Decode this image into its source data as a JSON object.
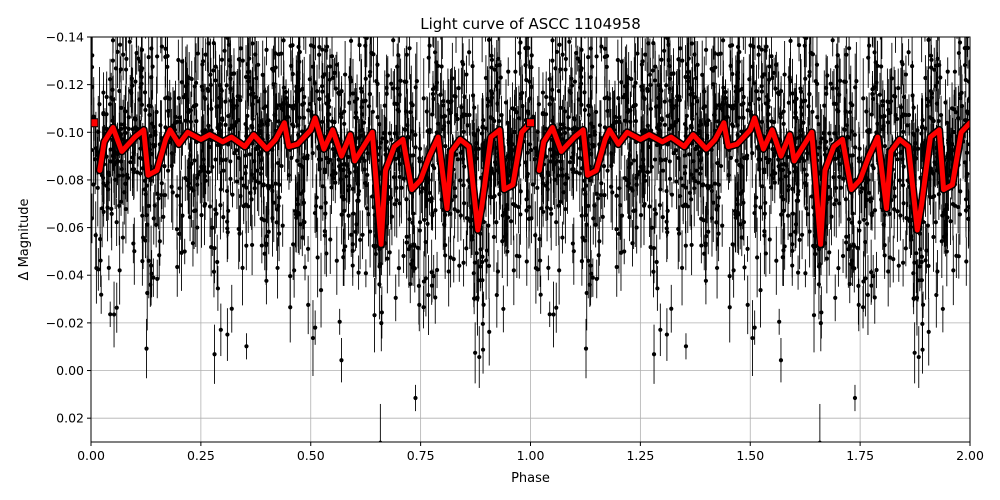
{
  "chart_data": {
    "type": "scatter",
    "title": "Light curve of ASCC 1104958",
    "xlabel": "Phase",
    "ylabel": "Δ Magnitude",
    "xlim": [
      0.0,
      2.0
    ],
    "ylim": [
      0.03,
      -0.14
    ],
    "y_inverted": true,
    "grid": true,
    "x_ticks": [
      0.0,
      0.25,
      0.5,
      0.75,
      1.0,
      1.25,
      1.5,
      1.75,
      2.0
    ],
    "x_tick_labels": [
      "0.00",
      "0.25",
      "0.50",
      "0.75",
      "1.00",
      "1.25",
      "1.50",
      "1.75",
      "2.00"
    ],
    "y_ticks": [
      -0.14,
      -0.12,
      -0.1,
      -0.08,
      -0.06,
      -0.04,
      -0.02,
      0.0,
      0.02
    ],
    "y_tick_labels": [
      "−0.14",
      "−0.12",
      "−0.10",
      "−0.08",
      "−0.06",
      "−0.04",
      "−0.02",
      "0.00",
      "0.02"
    ],
    "colors": {
      "points": "#000000",
      "model": "#ff0000",
      "grid": "#b0b0b0"
    },
    "series": [
      {
        "kind": "binned-model",
        "x": [
          0.0,
          0.02,
          0.03,
          0.05,
          0.07,
          0.08,
          0.1,
          0.12,
          0.13,
          0.15,
          0.17,
          0.18,
          0.2,
          0.22,
          0.25,
          0.27,
          0.3,
          0.32,
          0.35,
          0.37,
          0.4,
          0.42,
          0.44,
          0.45,
          0.47,
          0.5,
          0.51,
          0.53,
          0.55,
          0.57,
          0.59,
          0.6,
          0.62,
          0.64,
          0.66,
          0.67,
          0.69,
          0.71,
          0.73,
          0.75,
          0.77,
          0.79,
          0.81,
          0.82,
          0.84,
          0.86,
          0.88,
          0.89,
          0.91,
          0.93,
          0.94,
          0.96,
          0.98,
          1.0
        ],
        "y": [
          -0.104,
          -0.084,
          -0.096,
          -0.102,
          -0.092,
          -0.094,
          -0.098,
          -0.101,
          -0.082,
          -0.084,
          -0.097,
          -0.101,
          -0.095,
          -0.1,
          -0.097,
          -0.099,
          -0.096,
          -0.098,
          -0.094,
          -0.099,
          -0.093,
          -0.097,
          -0.104,
          -0.094,
          -0.095,
          -0.101,
          -0.106,
          -0.093,
          -0.101,
          -0.09,
          -0.099,
          -0.088,
          -0.094,
          -0.1,
          -0.053,
          -0.084,
          -0.094,
          -0.097,
          -0.076,
          -0.08,
          -0.09,
          -0.098,
          -0.068,
          -0.092,
          -0.097,
          -0.094,
          -0.059,
          -0.07,
          -0.098,
          -0.101,
          -0.076,
          -0.078,
          -0.1,
          -0.104
        ]
      }
    ]
  }
}
